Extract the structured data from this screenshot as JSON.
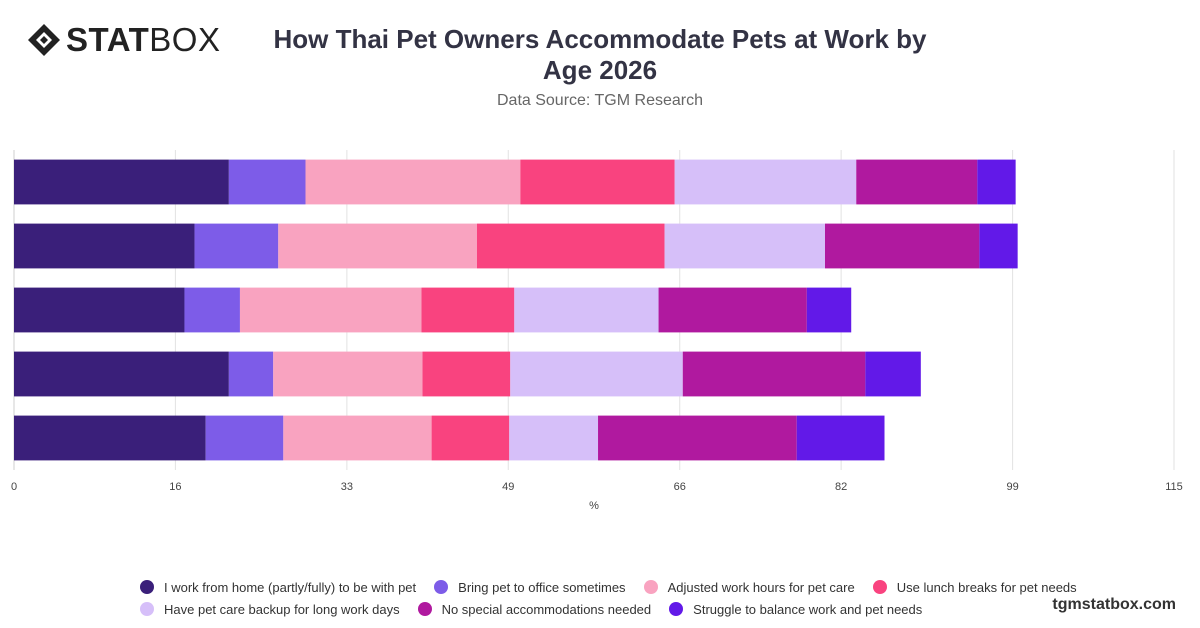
{
  "brand": {
    "logo_bold": "STAT",
    "logo_light": "BOX",
    "icon": "diamond-logo-icon",
    "watermark": "tgmstatbox.com"
  },
  "chart_data": {
    "type": "bar",
    "orientation": "horizontal",
    "stacked": true,
    "title": "How Thai Pet Owners Accommodate Pets at Work by Age 2026",
    "subtitle": "Data Source: TGM Research",
    "xlabel": "%",
    "ylabel": "",
    "xlim": [
      0,
      115
    ],
    "x_ticks": [
      "0",
      "16",
      "33",
      "49",
      "66",
      "82",
      "99",
      "115"
    ],
    "grid": true,
    "legend_position": "bottom",
    "categories": [
      "",
      "",
      "",
      "",
      ""
    ],
    "series": [
      {
        "name": "I work from home (partly/fully) to be with pet",
        "color": "#3a1f7a",
        "values": [
          21.3,
          17.9,
          16.9,
          21.3,
          19.0
        ]
      },
      {
        "name": "Bring pet to office sometimes",
        "color": "#7d5ce8",
        "values": [
          7.6,
          8.3,
          5.5,
          4.4,
          7.7
        ]
      },
      {
        "name": "Adjusted work hours for pet care",
        "color": "#f9a3c0",
        "values": [
          21.3,
          19.7,
          18.0,
          14.8,
          14.7
        ]
      },
      {
        "name": "Use lunch breaks for pet needs",
        "color": "#f9437f",
        "values": [
          15.3,
          18.6,
          9.2,
          8.7,
          7.7
        ]
      },
      {
        "name": "Have pet care backup for long work days",
        "color": "#d6bff9",
        "values": [
          18.0,
          15.9,
          14.3,
          17.1,
          8.8
        ]
      },
      {
        "name": "No special accommodations needed",
        "color": "#b0199f",
        "values": [
          12.0,
          15.3,
          14.7,
          18.1,
          19.7
        ]
      },
      {
        "name": "Struggle to balance work and pet needs",
        "color": "#6219e8",
        "values": [
          3.8,
          3.8,
          4.4,
          5.5,
          8.7
        ]
      }
    ]
  }
}
